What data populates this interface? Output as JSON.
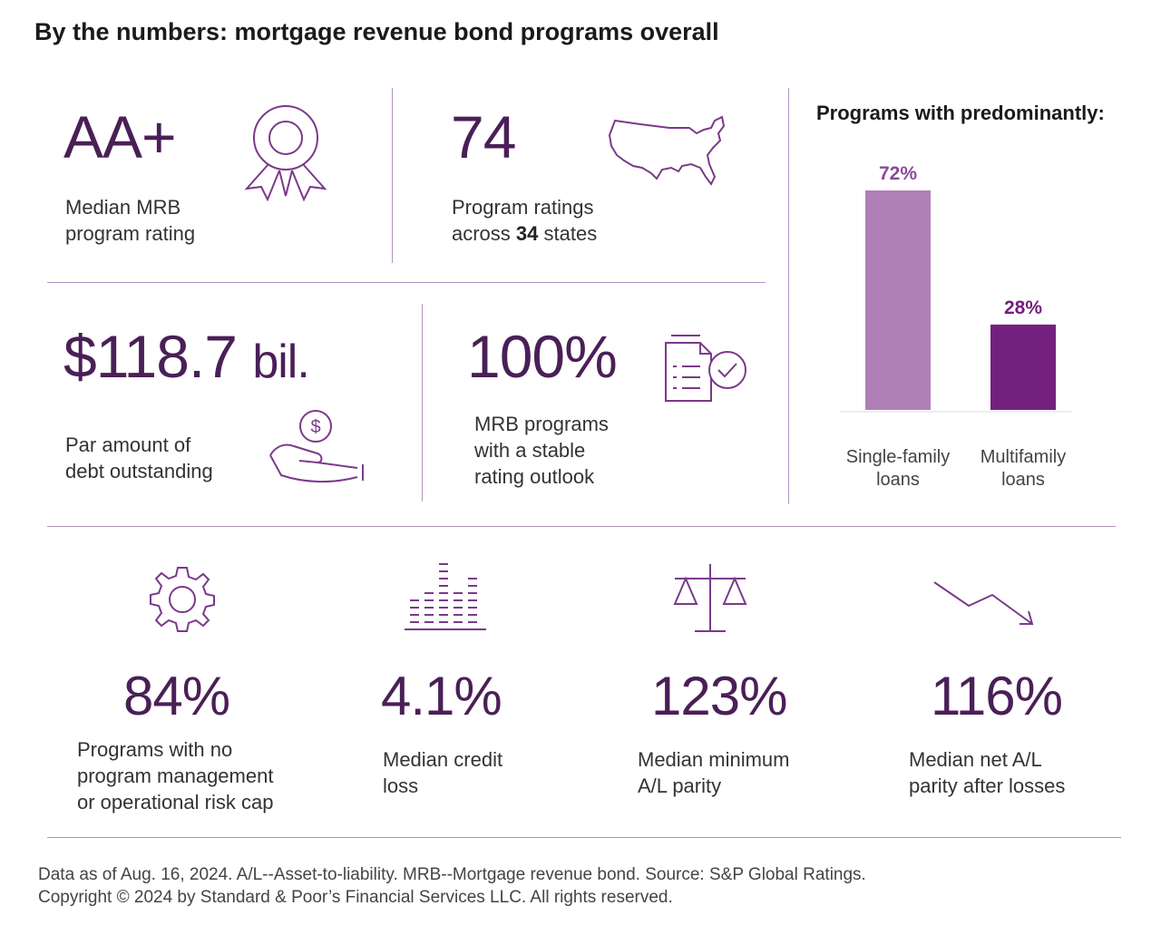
{
  "title": "By the numbers: mortgage revenue bond programs overall",
  "stats": {
    "rating": {
      "value": "AA+",
      "line1": "Median MRB",
      "line2": "program rating"
    },
    "ratings_count": {
      "value": "74",
      "line1": "Program ratings",
      "line2_pre": "across ",
      "line2_bold": "34",
      "line2_post": " states"
    },
    "par": {
      "value": "$118.7",
      "unit": "bil.",
      "line1": "Par amount of",
      "line2": "debt outstanding"
    },
    "stable": {
      "value": "100%",
      "line1": "MRB programs",
      "line2": "with a stable",
      "line3": "rating outlook"
    },
    "no_cap": {
      "value": "84%",
      "line1": "Programs with no",
      "line2": "program management",
      "line3": "or operational risk cap"
    },
    "credit_loss": {
      "value": "4.1%",
      "line1": "Median credit",
      "line2": "loss"
    },
    "min_parity": {
      "value": "123%",
      "line1": "Median minimum",
      "line2": "A/L parity"
    },
    "net_parity": {
      "value": "116%",
      "line1": "Median net A/L",
      "line2": "parity after losses"
    }
  },
  "chart_data": {
    "type": "bar",
    "title": "Programs with predominantly:",
    "categories": [
      [
        "Single-family",
        "loans"
      ],
      [
        "Multifamily",
        "loans"
      ]
    ],
    "values": [
      72,
      28
    ],
    "value_labels": [
      "72%",
      "28%"
    ],
    "colors": [
      "#b07fb8",
      "#74207e"
    ],
    "ylim": [
      0,
      72
    ],
    "grid": false,
    "legend": "none"
  },
  "footer": {
    "line1": "Data as of Aug. 16, 2024. A/L--Asset-to-liability. MRB--Mortgage revenue bond. Source: S&P Global Ratings.",
    "line2": "Copyright © 2024 by Standard & Poor’s Financial Services LLC. All rights reserved."
  },
  "icons": [
    "award-ribbon-icon",
    "usa-map-icon",
    "hand-coin-icon",
    "document-check-icon",
    "gear-icon",
    "bar-graph-icon",
    "balance-scale-icon",
    "trend-down-arrow-icon"
  ],
  "colors": {
    "accent": "#74207e",
    "number": "#4a1f57",
    "divider": "#b792c2"
  }
}
